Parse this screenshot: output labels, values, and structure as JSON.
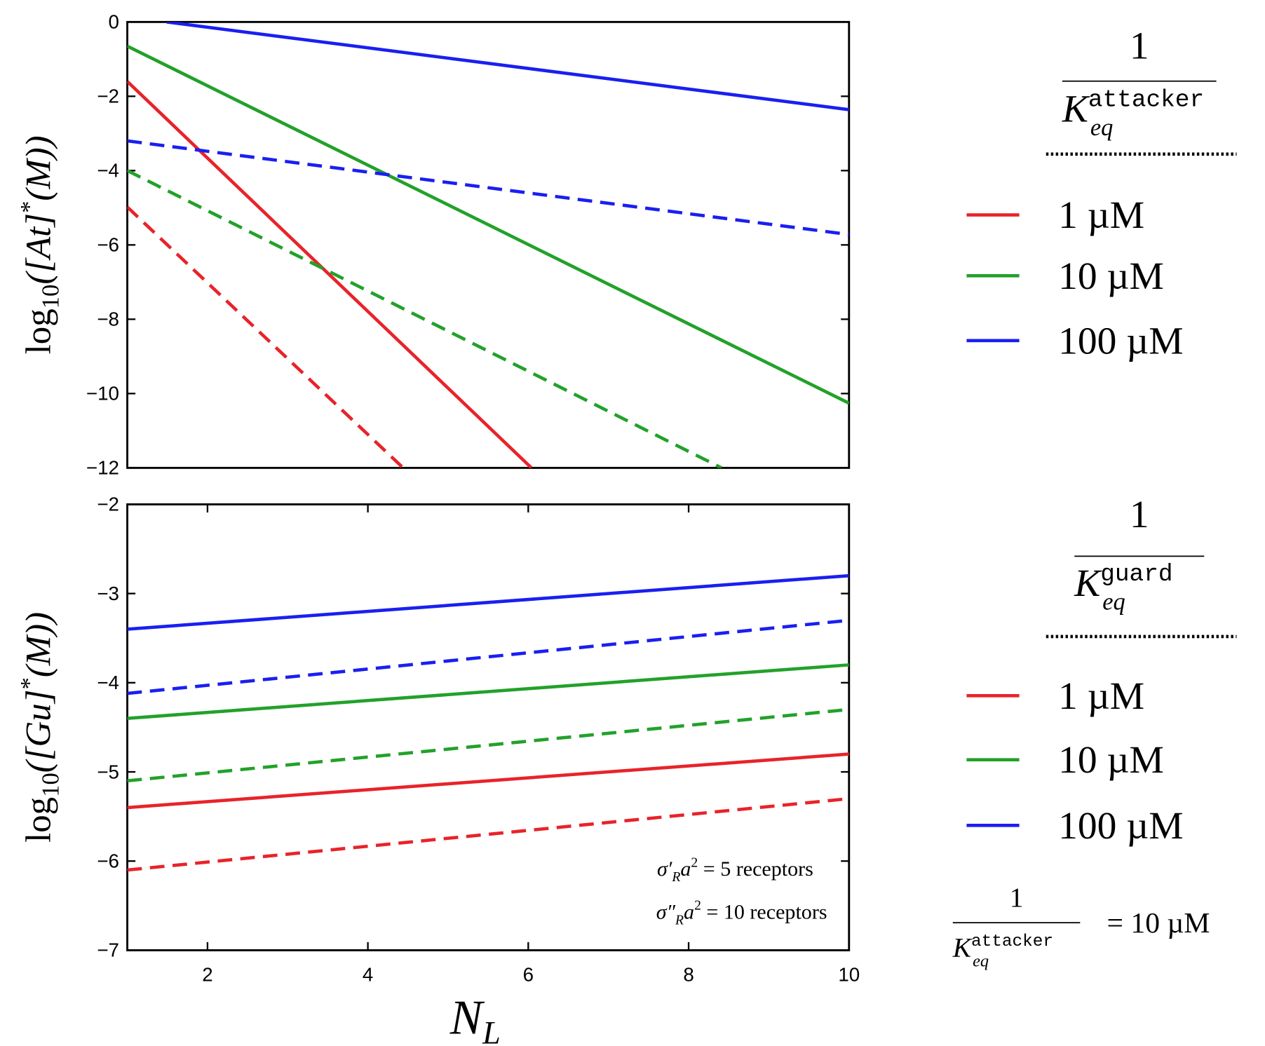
{
  "chart_data": [
    {
      "type": "line",
      "ylabel": {
        "base": "log",
        "sub": "10",
        "body": "([At]",
        "sup": "*",
        "tail": "(M))"
      },
      "xlim": [
        1,
        10
      ],
      "ylim": [
        -12,
        0
      ],
      "yticks": [
        {
          "value": 0,
          "label": "0"
        },
        {
          "value": -2,
          "label": "−2"
        },
        {
          "value": -4,
          "label": "−4"
        },
        {
          "value": -6,
          "label": "−6"
        },
        {
          "value": -8,
          "label": "−8"
        },
        {
          "value": -10,
          "label": "−10"
        },
        {
          "value": -12,
          "label": "−12"
        }
      ],
      "legend_title": {
        "numerator": "1",
        "denominator": "K",
        "subscript": "eq",
        "superscript": "attacker"
      },
      "series": [
        {
          "name": "1 µM",
          "color": "#e8232a",
          "x": [
            1,
            6.04
          ],
          "values": [
            -1.6,
            -12
          ]
        },
        {
          "name": "10 µM",
          "color": "#22a12a",
          "x": [
            1,
            10
          ],
          "values": [
            -0.65,
            -10.26
          ]
        },
        {
          "name": "100 µM",
          "color": "#1a1ff0",
          "x": [
            1.49,
            10
          ],
          "values": [
            0,
            -2.36
          ]
        },
        {
          "color": "#e8232a",
          "dash": true,
          "x": [
            1,
            4.44
          ],
          "values": [
            -4.98,
            -12
          ]
        },
        {
          "color": "#22a12a",
          "dash": true,
          "x": [
            1,
            8.41
          ],
          "values": [
            -4.0,
            -12
          ]
        },
        {
          "color": "#1a1ff0",
          "dash": true,
          "x": [
            1,
            10
          ],
          "values": [
            -3.2,
            -5.72
          ]
        }
      ]
    },
    {
      "type": "line",
      "ylabel": {
        "base": "log",
        "sub": "10",
        "body": "([Gu]",
        "sup": "*",
        "tail": "(M))"
      },
      "xlabel": {
        "base": "N",
        "sub": "L"
      },
      "xlim": [
        1,
        10
      ],
      "ylim": [
        -7,
        -2
      ],
      "xticks": [
        2,
        4,
        6,
        8,
        10
      ],
      "yticks": [
        {
          "value": -2,
          "label": "−2"
        },
        {
          "value": -3,
          "label": "−3"
        },
        {
          "value": -4,
          "label": "−4"
        },
        {
          "value": -5,
          "label": "−5"
        },
        {
          "value": -6,
          "label": "−6"
        },
        {
          "value": -7,
          "label": "−7"
        }
      ],
      "legend_title": {
        "numerator": "1",
        "denominator": "K",
        "subscript": "eq",
        "superscript": "guard"
      },
      "annotations": [
        {
          "symbol": "σ′",
          "sub": "R",
          "rest": "a",
          "sup": "2",
          "text": " = 5 receptors"
        },
        {
          "symbol": "σ″",
          "sub": "R",
          "rest": "a",
          "sup": "2",
          "text": " = 10 receptors"
        }
      ],
      "note": {
        "numerator": "1",
        "denominator": "K",
        "subscript": "eq",
        "superscript": "attacker",
        "text": "= 10 µM"
      },
      "series": [
        {
          "name": "1 µM",
          "color": "#e8232a",
          "x": [
            1,
            10
          ],
          "values": [
            -5.4,
            -4.8
          ]
        },
        {
          "name": "10 µM",
          "color": "#22a12a",
          "x": [
            1,
            10
          ],
          "values": [
            -4.4,
            -3.8
          ]
        },
        {
          "name": "100 µM",
          "color": "#1a1ff0",
          "x": [
            1,
            10
          ],
          "values": [
            -3.4,
            -2.8
          ]
        },
        {
          "color": "#e8232a",
          "dash": true,
          "x": [
            1,
            10
          ],
          "values": [
            -6.1,
            -5.3
          ]
        },
        {
          "color": "#22a12a",
          "dash": true,
          "x": [
            1,
            10
          ],
          "values": [
            -5.1,
            -4.3
          ]
        },
        {
          "color": "#1a1ff0",
          "dash": true,
          "x": [
            1,
            10
          ],
          "values": [
            -4.12,
            -3.3
          ]
        }
      ]
    }
  ]
}
